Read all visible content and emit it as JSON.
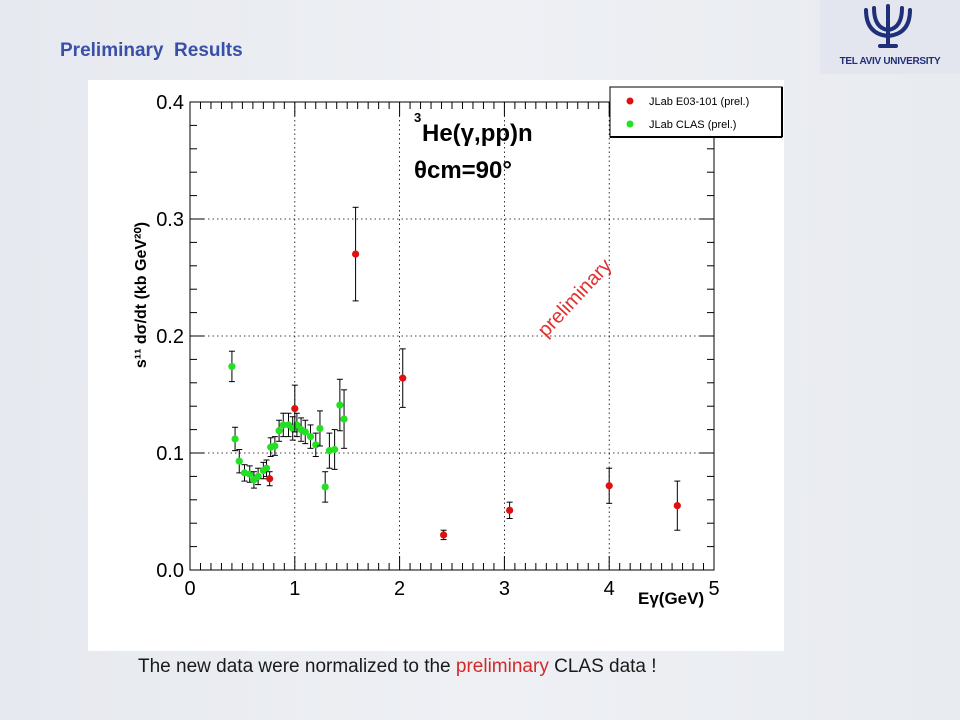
{
  "slide": {
    "title": "Preliminary  Results",
    "logo_text": "TEL AVIV UNIVERSITY",
    "caption_pre": "The new data were normalized to the ",
    "caption_highlight": "preliminary",
    "caption_post": " CLAS data !",
    "highlight_color": "#d22a2a"
  },
  "chart_data": {
    "type": "scatter",
    "title": "",
    "reaction_label": "He(γ,pp)n",
    "reaction_superscript": "3",
    "angle_label": "θcm=90°",
    "watermark": "preliminary",
    "xlabel": "Eγ(GeV)",
    "ylabel": "s¹¹ dσ/dt (kb GeV²⁰)",
    "xlim": [
      0,
      5
    ],
    "ylim": [
      0,
      0.4
    ],
    "x_ticks": [
      "0",
      "1",
      "2",
      "3",
      "4",
      "5"
    ],
    "y_ticks": [
      "0.0",
      "0.1",
      "0.2",
      "0.3",
      "0.4"
    ],
    "grid": true,
    "legend_position": "top-right",
    "series": [
      {
        "name": "JLab E03-101 (prel.)",
        "color": "#e01010",
        "points": [
          {
            "x": 1.0,
            "y": 0.138,
            "err": 0.02
          },
          {
            "x": 0.76,
            "y": 0.078,
            "err": 0.006
          },
          {
            "x": 1.58,
            "y": 0.27,
            "err": 0.04
          },
          {
            "x": 2.03,
            "y": 0.164,
            "err": 0.025
          },
          {
            "x": 2.42,
            "y": 0.03,
            "err": 0.004
          },
          {
            "x": 3.05,
            "y": 0.051,
            "err": 0.007
          },
          {
            "x": 4.0,
            "y": 0.072,
            "err": 0.015
          },
          {
            "x": 4.65,
            "y": 0.055,
            "err": 0.021
          }
        ]
      },
      {
        "name": "JLab CLAS (prel.)",
        "color": "#22e022",
        "points": [
          {
            "x": 0.4,
            "y": 0.174,
            "err": 0.013
          },
          {
            "x": 0.43,
            "y": 0.112,
            "err": 0.01
          },
          {
            "x": 0.47,
            "y": 0.093,
            "err": 0.01
          },
          {
            "x": 0.52,
            "y": 0.083,
            "err": 0.007
          },
          {
            "x": 0.57,
            "y": 0.082,
            "err": 0.007
          },
          {
            "x": 0.61,
            "y": 0.077,
            "err": 0.007
          },
          {
            "x": 0.65,
            "y": 0.08,
            "err": 0.007
          },
          {
            "x": 0.7,
            "y": 0.085,
            "err": 0.007
          },
          {
            "x": 0.73,
            "y": 0.087,
            "err": 0.007
          },
          {
            "x": 0.77,
            "y": 0.105,
            "err": 0.008
          },
          {
            "x": 0.81,
            "y": 0.106,
            "err": 0.008
          },
          {
            "x": 0.85,
            "y": 0.119,
            "err": 0.009
          },
          {
            "x": 0.89,
            "y": 0.124,
            "err": 0.01
          },
          {
            "x": 0.94,
            "y": 0.124,
            "err": 0.01
          },
          {
            "x": 0.98,
            "y": 0.121,
            "err": 0.01
          },
          {
            "x": 1.02,
            "y": 0.124,
            "err": 0.01
          },
          {
            "x": 1.06,
            "y": 0.12,
            "err": 0.01
          },
          {
            "x": 1.1,
            "y": 0.118,
            "err": 0.01
          },
          {
            "x": 1.15,
            "y": 0.114,
            "err": 0.01
          },
          {
            "x": 1.2,
            "y": 0.107,
            "err": 0.01
          },
          {
            "x": 1.24,
            "y": 0.121,
            "err": 0.015
          },
          {
            "x": 1.29,
            "y": 0.071,
            "err": 0.013
          },
          {
            "x": 1.33,
            "y": 0.102,
            "err": 0.015
          },
          {
            "x": 1.38,
            "y": 0.103,
            "err": 0.017
          },
          {
            "x": 1.43,
            "y": 0.141,
            "err": 0.022
          },
          {
            "x": 1.47,
            "y": 0.129,
            "err": 0.025
          }
        ]
      }
    ]
  }
}
